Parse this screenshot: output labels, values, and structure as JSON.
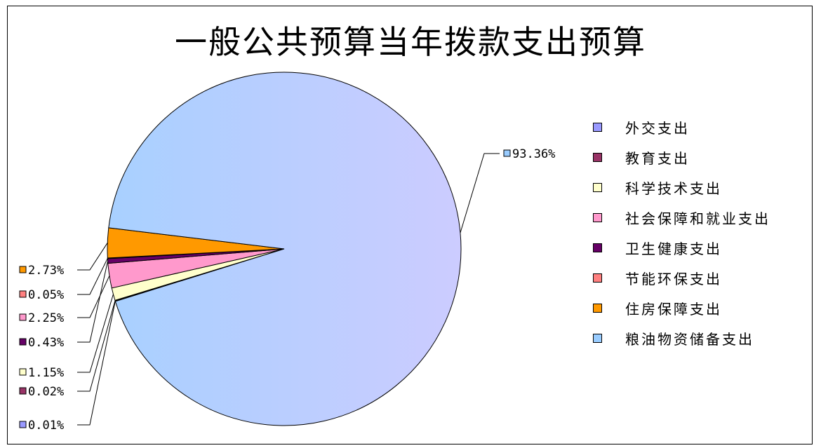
{
  "chart_data": {
    "type": "pie",
    "title": "一般公共预算当年拨款支出预算",
    "legend_position": "right",
    "slices": [
      {
        "name": "外交支出",
        "value": 0.01,
        "label": "0.01%",
        "color": "#9999ff"
      },
      {
        "name": "教育支出",
        "value": 0.02,
        "label": "0.02%",
        "color": "#993366"
      },
      {
        "name": "科学技术支出",
        "value": 1.15,
        "label": "1.15%",
        "color": "#ffffcc"
      },
      {
        "name": "社会保障和就业支出",
        "value": 2.25,
        "label": "2.25%",
        "color": "#ff99cc"
      },
      {
        "name": "卫生健康支出",
        "value": 0.43,
        "label": "0.43%",
        "color": "#660066"
      },
      {
        "name": "节能环保支出",
        "value": 0.05,
        "label": "0.05%",
        "color": "#ff8080"
      },
      {
        "name": "住房保障支出",
        "value": 2.73,
        "label": "2.73%",
        "color": "#ff9900"
      },
      {
        "name": "粮油物资储备支出",
        "value": 93.36,
        "label": "93.36%",
        "color": "#99ccff"
      }
    ]
  }
}
